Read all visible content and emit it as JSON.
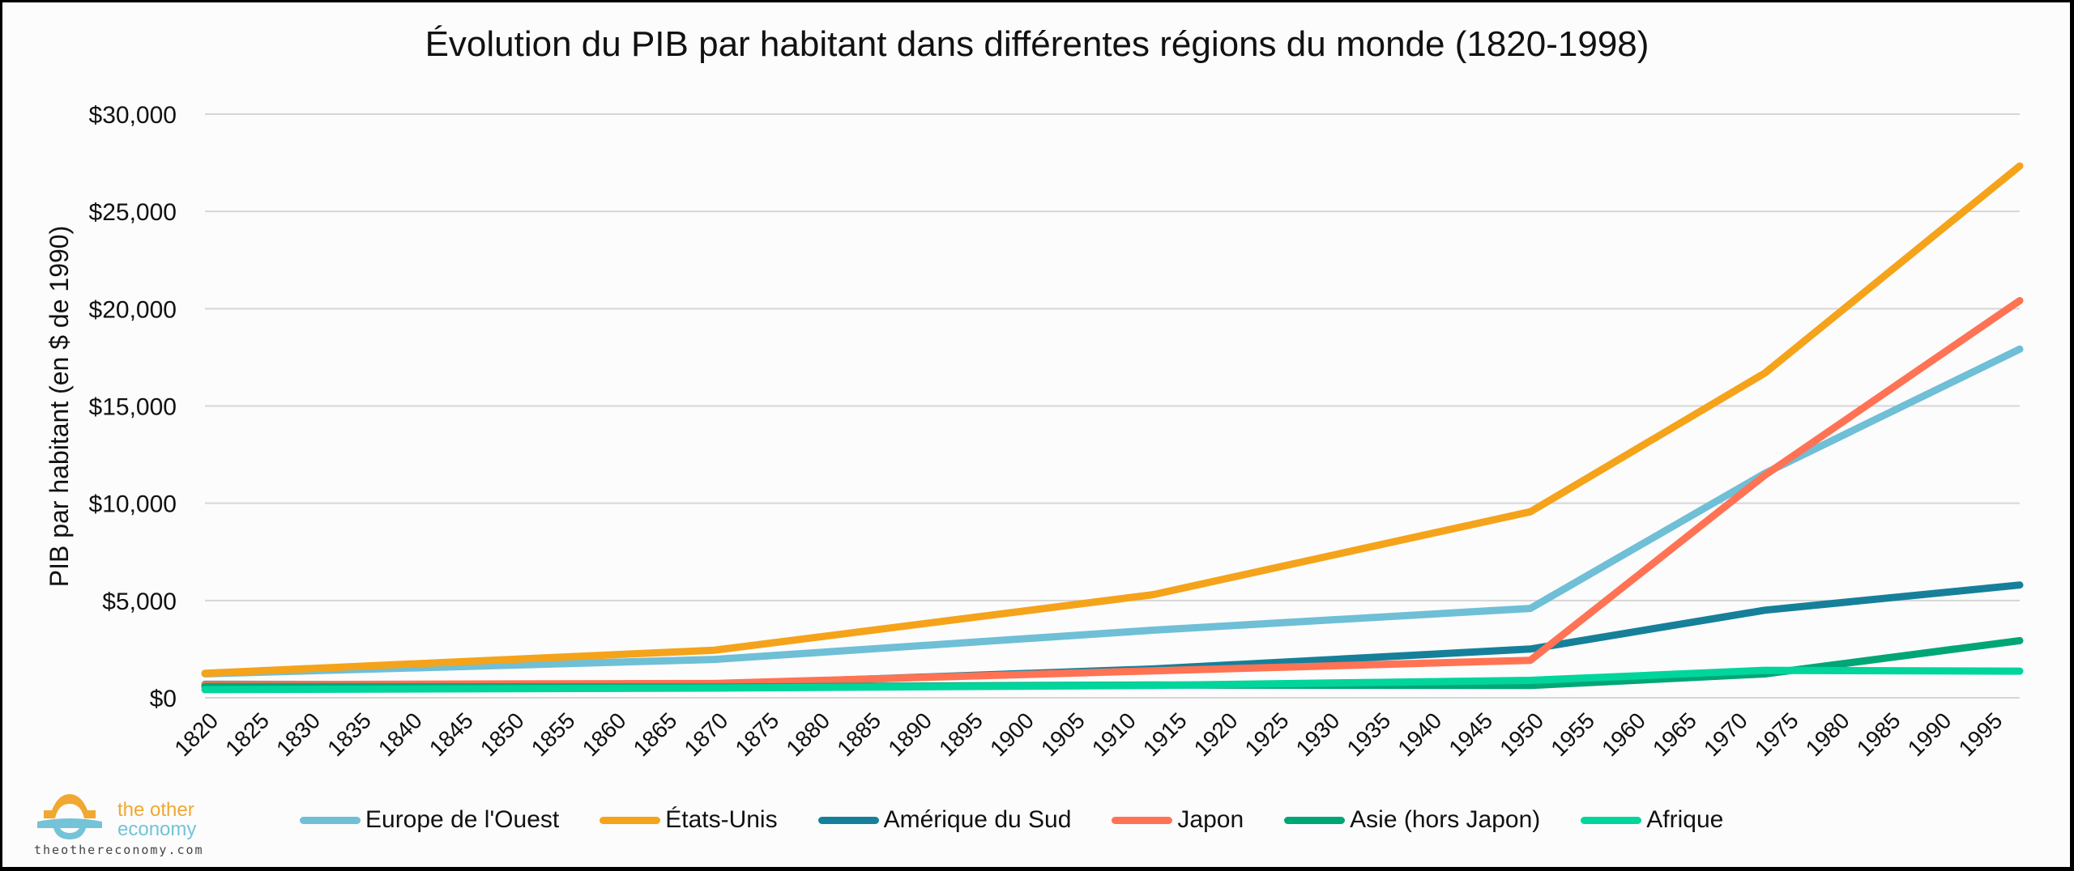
{
  "chart_data": {
    "type": "line",
    "title": "Évolution du PIB par habitant dans différentes régions du monde (1820-1998)",
    "xlabel": "",
    "ylabel": "PIB par habitant (en $ de 1990)",
    "x": [
      1820,
      1870,
      1913,
      1950,
      1973,
      1998
    ],
    "x_ticks": [
      "1820",
      "1825",
      "1830",
      "1835",
      "1840",
      "1845",
      "1850",
      "1855",
      "1860",
      "1865",
      "1870",
      "1875",
      "1880",
      "1885",
      "1890",
      "1895",
      "1900",
      "1905",
      "1910",
      "1915",
      "1920",
      "1925",
      "1930",
      "1935",
      "1940",
      "1945",
      "1950",
      "1955",
      "1960",
      "1965",
      "1970",
      "1975",
      "1980",
      "1985",
      "1990",
      "1995"
    ],
    "xlim": [
      1820,
      1998
    ],
    "ylim": [
      0,
      30000
    ],
    "y_ticks": [
      0,
      5000,
      10000,
      15000,
      20000,
      25000,
      30000
    ],
    "y_tick_labels": [
      "$0",
      "$5,000",
      "$10,000",
      "$15,000",
      "$20,000",
      "$25,000",
      "$30,000"
    ],
    "grid": true,
    "legend_position": "bottom",
    "series": [
      {
        "name": "Europe de l'Ouest",
        "color": "#6fbfd6",
        "values": [
          1232,
          1974,
          3473,
          4594,
          11534,
          17921
        ]
      },
      {
        "name": "États-Unis",
        "color": "#f5a31a",
        "values": [
          1257,
          2445,
          5301,
          9561,
          16689,
          27331
        ]
      },
      {
        "name": "Amérique du Sud",
        "color": "#16809a",
        "values": [
          692,
          681,
          1481,
          2506,
          4504,
          5795
        ]
      },
      {
        "name": "Japon",
        "color": "#ff7354",
        "values": [
          669,
          737,
          1387,
          1926,
          11439,
          20413
        ]
      },
      {
        "name": "Asie (hors Japon)",
        "color": "#00a676",
        "values": [
          577,
          550,
          658,
          634,
          1226,
          2936
        ]
      },
      {
        "name": "Afrique",
        "color": "#00d59c",
        "values": [
          420,
          500,
          637,
          894,
          1410,
          1368
        ]
      }
    ]
  },
  "branding": {
    "logo_line1": "the other",
    "logo_line2": "economy",
    "url": "theothereconomy.com"
  }
}
